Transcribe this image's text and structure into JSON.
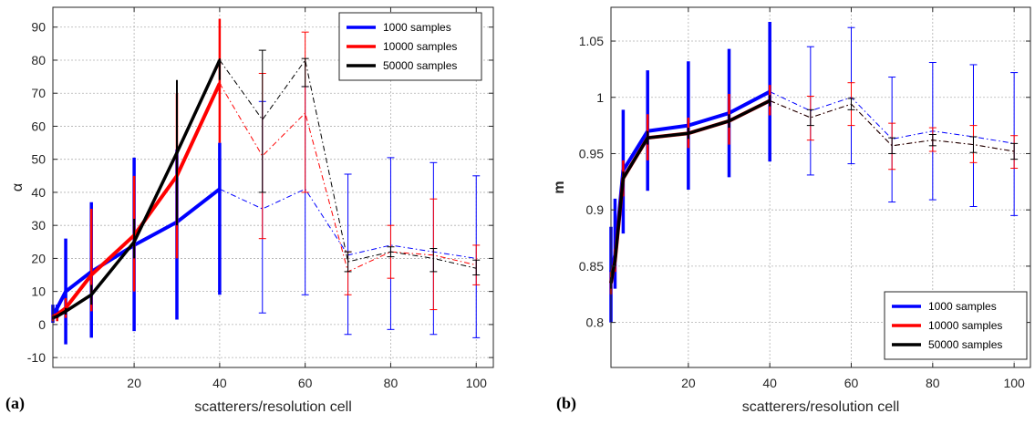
{
  "chart_data": [
    {
      "type": "line",
      "panel_label": "(a)",
      "xlabel": "scatterers/resolution cell",
      "ylabel": "α",
      "xlim": [
        1,
        104
      ],
      "ylim": [
        -13,
        96
      ],
      "xticks": [
        20,
        40,
        60,
        80,
        100
      ],
      "yticks": [
        -10,
        0,
        10,
        20,
        30,
        40,
        50,
        60,
        70,
        80,
        90
      ],
      "grid": true,
      "legend_position": "top-right",
      "solid_until_x": 40,
      "series": [
        {
          "name": "1000 samples",
          "color": "#0000ff",
          "x": [
            1,
            2,
            4,
            10,
            20,
            30,
            40,
            50,
            60,
            70,
            80,
            90,
            100
          ],
          "y": [
            3,
            5,
            10,
            16,
            24,
            31,
            41,
            35,
            41,
            21,
            24,
            22,
            20
          ],
          "err_low": [
            0.5,
            2,
            -6,
            -4,
            -2,
            1.5,
            9,
            3.5,
            9,
            -3,
            -1.5,
            -3,
            -4
          ],
          "err_high": [
            6,
            6,
            26,
            37,
            50.5,
            53,
            55,
            67.5,
            72,
            45.5,
            50.5,
            49,
            45
          ]
        },
        {
          "name": "10000 samples",
          "color": "#ff0000",
          "x": [
            1,
            2,
            4,
            10,
            20,
            30,
            40,
            50,
            60,
            70,
            80,
            90,
            100
          ],
          "y": [
            2.5,
            3,
            5,
            15,
            27,
            45,
            73,
            51,
            64,
            16,
            22,
            21,
            18
          ],
          "err_low": [
            1,
            1,
            2,
            4,
            10,
            20,
            55,
            26,
            40,
            9,
            14,
            4.5,
            12
          ],
          "err_high": [
            3,
            3,
            8,
            35,
            45,
            70,
            92.5,
            76,
            88.5,
            22,
            30,
            38,
            24
          ]
        },
        {
          "name": "50000 samples",
          "color": "#000000",
          "x": [
            1,
            2,
            4,
            10,
            20,
            30,
            40,
            50,
            60,
            70,
            80,
            90,
            100
          ],
          "y": [
            2,
            2.5,
            4,
            9,
            25,
            52,
            80,
            62,
            80,
            19,
            22,
            20,
            17
          ],
          "err_low": [
            1.5,
            2,
            3,
            6,
            20,
            30,
            74,
            40,
            72,
            16,
            20.5,
            16,
            15
          ],
          "err_high": [
            2.5,
            3,
            5,
            12,
            32,
            74,
            80.5,
            83,
            80.5,
            22,
            23.5,
            23,
            19.5
          ]
        }
      ]
    },
    {
      "type": "line",
      "panel_label": "(b)",
      "xlabel": "scatterers/resolution cell",
      "ylabel": "m",
      "xlim": [
        1,
        104
      ],
      "ylim": [
        0.76,
        1.08
      ],
      "xticks": [
        20,
        40,
        60,
        80,
        100
      ],
      "yticks": [
        0.8,
        0.85,
        0.9,
        0.95,
        1,
        1.05
      ],
      "ytick_labels": [
        "0.8",
        "0.85",
        "0.9",
        "0.95",
        "1",
        "1.05"
      ],
      "grid": true,
      "legend_position": "bottom-right",
      "solid_until_x": 40,
      "series": [
        {
          "name": "1000 samples",
          "color": "#0000ff",
          "x": [
            1,
            2,
            4,
            10,
            20,
            30,
            40,
            50,
            60,
            70,
            80,
            90,
            100
          ],
          "y": [
            0.845,
            0.86,
            0.935,
            0.97,
            0.975,
            0.986,
            1.005,
            0.988,
            1,
            0.963,
            0.97,
            0.965,
            0.959
          ],
          "err_low": [
            0.8,
            0.83,
            0.879,
            0.917,
            0.918,
            0.929,
            0.943,
            0.931,
            0.941,
            0.907,
            0.909,
            0.903,
            0.895
          ],
          "err_high": [
            0.885,
            0.91,
            0.989,
            1.024,
            1.032,
            1.043,
            1.067,
            1.045,
            1.062,
            1.018,
            1.031,
            1.029,
            1.022
          ]
        },
        {
          "name": "10000 samples",
          "color": "#ff0000",
          "x": [
            1,
            2,
            4,
            10,
            20,
            30,
            40,
            50,
            60,
            70,
            80,
            90,
            100
          ],
          "y": [
            0.835,
            0.855,
            0.928,
            0.964,
            0.968,
            0.979,
            0.997,
            0.982,
            0.994,
            0.957,
            0.962,
            0.958,
            0.952
          ],
          "err_low": [
            0.825,
            0.845,
            0.912,
            0.944,
            0.955,
            0.958,
            0.984,
            0.962,
            0.975,
            0.936,
            0.952,
            0.942,
            0.937
          ],
          "err_high": [
            0.845,
            0.865,
            0.944,
            0.985,
            0.982,
            1.003,
            1.011,
            1.001,
            1.013,
            0.977,
            0.973,
            0.975,
            0.966
          ]
        },
        {
          "name": "50000 samples",
          "color": "#000000",
          "x": [
            1,
            2,
            4,
            10,
            20,
            30,
            40,
            50,
            60,
            70,
            80,
            90,
            100
          ],
          "y": [
            0.835,
            0.855,
            0.928,
            0.964,
            0.968,
            0.979,
            0.997,
            0.982,
            0.994,
            0.957,
            0.962,
            0.958,
            0.952
          ],
          "err_low": [
            0.83,
            0.85,
            0.922,
            0.958,
            0.963,
            0.973,
            0.992,
            0.975,
            0.989,
            0.95,
            0.957,
            0.951,
            0.945
          ],
          "err_high": [
            0.84,
            0.86,
            0.934,
            0.97,
            0.973,
            0.985,
            1.002,
            0.989,
            0.999,
            0.964,
            0.967,
            0.965,
            0.959
          ]
        }
      ]
    }
  ]
}
